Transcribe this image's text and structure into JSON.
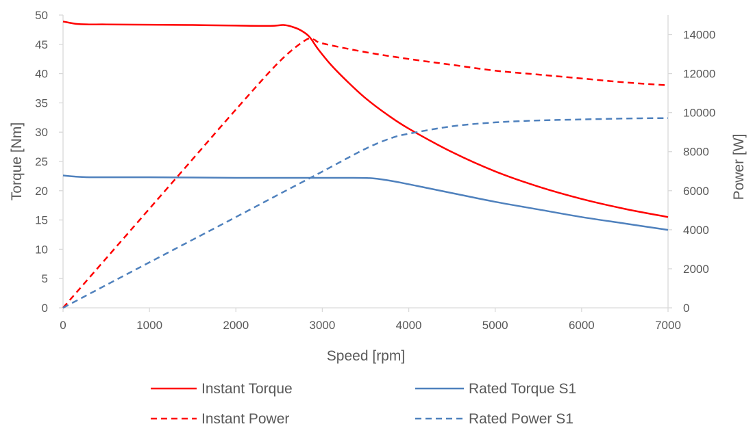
{
  "chart_data": {
    "type": "line",
    "title": "",
    "xlabel": "Speed [rpm]",
    "ylabel_left": "Torque [Nm]",
    "ylabel_right": "Power [W]",
    "xlim": [
      0,
      7000
    ],
    "ylim_left": [
      0,
      50
    ],
    "ylim_right": [
      0,
      15000
    ],
    "x_ticks": [
      0,
      1000,
      2000,
      3000,
      4000,
      5000,
      6000,
      7000
    ],
    "y_left_ticks": [
      0,
      5,
      10,
      15,
      20,
      25,
      30,
      35,
      40,
      45,
      50
    ],
    "y_right_ticks": [
      0,
      2000,
      4000,
      6000,
      8000,
      10000,
      12000,
      14000
    ],
    "grid": false,
    "legend_position": "bottom",
    "series": [
      {
        "name": "Instant Torque",
        "axis": "left",
        "color": "#ff0000",
        "dash": "solid",
        "x": [
          0,
          150,
          300,
          500,
          1000,
          1500,
          2000,
          2400,
          2550,
          2650,
          2750,
          2850,
          2950,
          3100,
          3300,
          3500,
          3750,
          4000,
          4500,
          5000,
          5500,
          6000,
          6500,
          7000
        ],
        "y": [
          48.9,
          48.5,
          48.4,
          48.4,
          48.35,
          48.3,
          48.2,
          48.15,
          48.3,
          48.0,
          47.4,
          46.3,
          44.2,
          41.5,
          38.5,
          35.8,
          33.0,
          30.6,
          26.6,
          23.3,
          20.7,
          18.6,
          16.9,
          15.5
        ]
      },
      {
        "name": "Rated Torque S1",
        "axis": "left",
        "color": "#4f81bd",
        "dash": "solid",
        "x": [
          0,
          150,
          300,
          500,
          1000,
          1500,
          2000,
          2500,
          3000,
          3300,
          3550,
          3700,
          3900,
          4200,
          4500,
          5000,
          5500,
          6000,
          6500,
          7000
        ],
        "y": [
          22.6,
          22.4,
          22.3,
          22.3,
          22.3,
          22.25,
          22.2,
          22.2,
          22.2,
          22.2,
          22.15,
          21.9,
          21.4,
          20.5,
          19.6,
          18.1,
          16.8,
          15.5,
          14.4,
          13.3
        ]
      },
      {
        "name": "Instant Power",
        "axis": "right",
        "color": "#ff0000",
        "dash": "dashed",
        "x": [
          0,
          500,
          1000,
          1500,
          2000,
          2500,
          2800,
          2900,
          3000,
          3500,
          4000,
          4500,
          5000,
          5500,
          6000,
          6500,
          7000
        ],
        "y": [
          0,
          2540,
          5080,
          7620,
          10160,
          12600,
          13700,
          13750,
          13550,
          13100,
          12750,
          12450,
          12150,
          11950,
          11750,
          11550,
          11400
        ]
      },
      {
        "name": "Rated Power S1",
        "axis": "right",
        "color": "#4f81bd",
        "dash": "dashed",
        "x": [
          0,
          500,
          1000,
          1500,
          2000,
          2500,
          3000,
          3500,
          3800,
          4000,
          4500,
          5000,
          5500,
          6000,
          6500,
          7000
        ],
        "y": [
          0,
          1170,
          2330,
          3490,
          4650,
          5820,
          6980,
          8150,
          8700,
          8920,
          9300,
          9500,
          9600,
          9650,
          9700,
          9720
        ]
      }
    ]
  }
}
